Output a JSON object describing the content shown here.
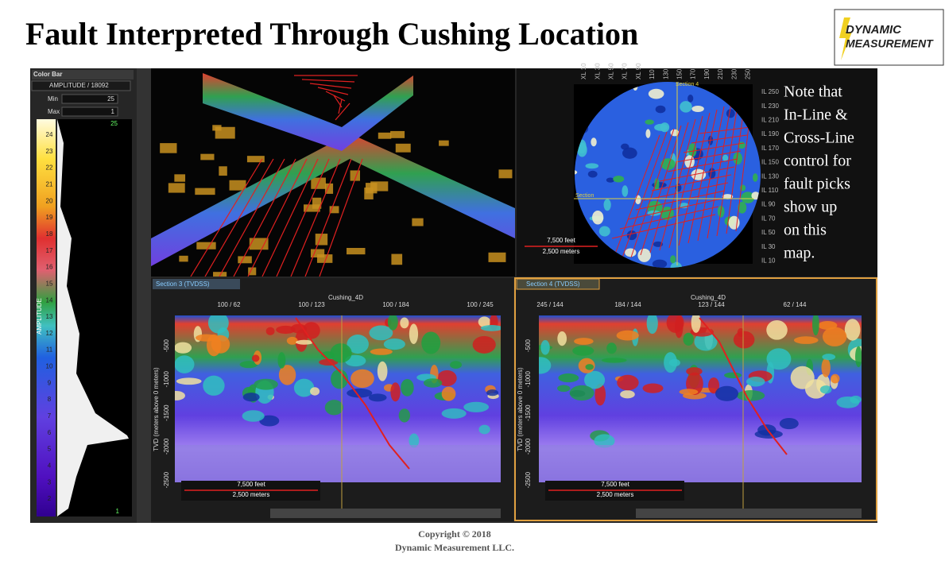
{
  "title": "Fault Interpreted Through Cushing Location",
  "logo": {
    "line1": "DYNAMIC",
    "line2": "MEASUREMENT"
  },
  "color_bar": {
    "header": "Color Bar",
    "attribute": "AMPLITUDE / 18092",
    "min_label": "Min",
    "min": 25,
    "max_label": "Max",
    "max": 1,
    "top_marker": 25,
    "bottom_marker": 1,
    "axis_label": "AMPLITUDE",
    "ticks": [
      24,
      23,
      22,
      21,
      20,
      19,
      18,
      17,
      16,
      15,
      14,
      13,
      12,
      11,
      10,
      9,
      8,
      7,
      6,
      5,
      4,
      3,
      2
    ]
  },
  "map": {
    "top_ticks": [
      "XL 10",
      "XL 30",
      "XL 50",
      "XL 70",
      "XL 90",
      "110",
      "130",
      "150",
      "170",
      "190",
      "210",
      "230",
      "250"
    ],
    "right_ticks": [
      "IL 250",
      "IL 230",
      "IL 210",
      "IL 190",
      "IL 170",
      "IL 150",
      "IL 130",
      "IL 110",
      "IL 90",
      "IL 70",
      "IL 50",
      "IL 30",
      "IL 10"
    ],
    "section_label_top": "Section 4",
    "section_label_left": "Section",
    "scale_feet": "7,500 feet",
    "scale_meters": "2,500 meters",
    "note": [
      "Note that",
      "In-Line &",
      "Cross-Line",
      "control for",
      "fault picks",
      "show up",
      "on this",
      "map."
    ]
  },
  "sections": [
    {
      "tab": "Section 3 (TVDSS)",
      "survey": "Cushing_4D",
      "top_ticks": [
        "100 / 62",
        "100 / 123",
        "100 / 184",
        "100 / 245"
      ],
      "depth_ticks": [
        -500,
        -1000,
        -1500,
        -2000,
        -2500
      ],
      "axis_label": "TVD (meters above 0 meters)",
      "scale_feet": "7,500 feet",
      "scale_meters": "2,500 meters"
    },
    {
      "tab": "Section 4 (TVDSS)",
      "survey": "Cushing_4D",
      "top_ticks": [
        "245 / 144",
        "184 / 144",
        "123 / 144",
        "62 / 144"
      ],
      "depth_ticks": [
        -500,
        -1000,
        -1500,
        -2000,
        -2500
      ],
      "axis_label": "TVD (meters above 0 meters)",
      "scale_feet": "7,500 feet",
      "scale_meters": "2,500 meters"
    }
  ],
  "footer": {
    "copyright": "Copyright © 2018",
    "company": "Dynamic  Measurement  LLC."
  }
}
